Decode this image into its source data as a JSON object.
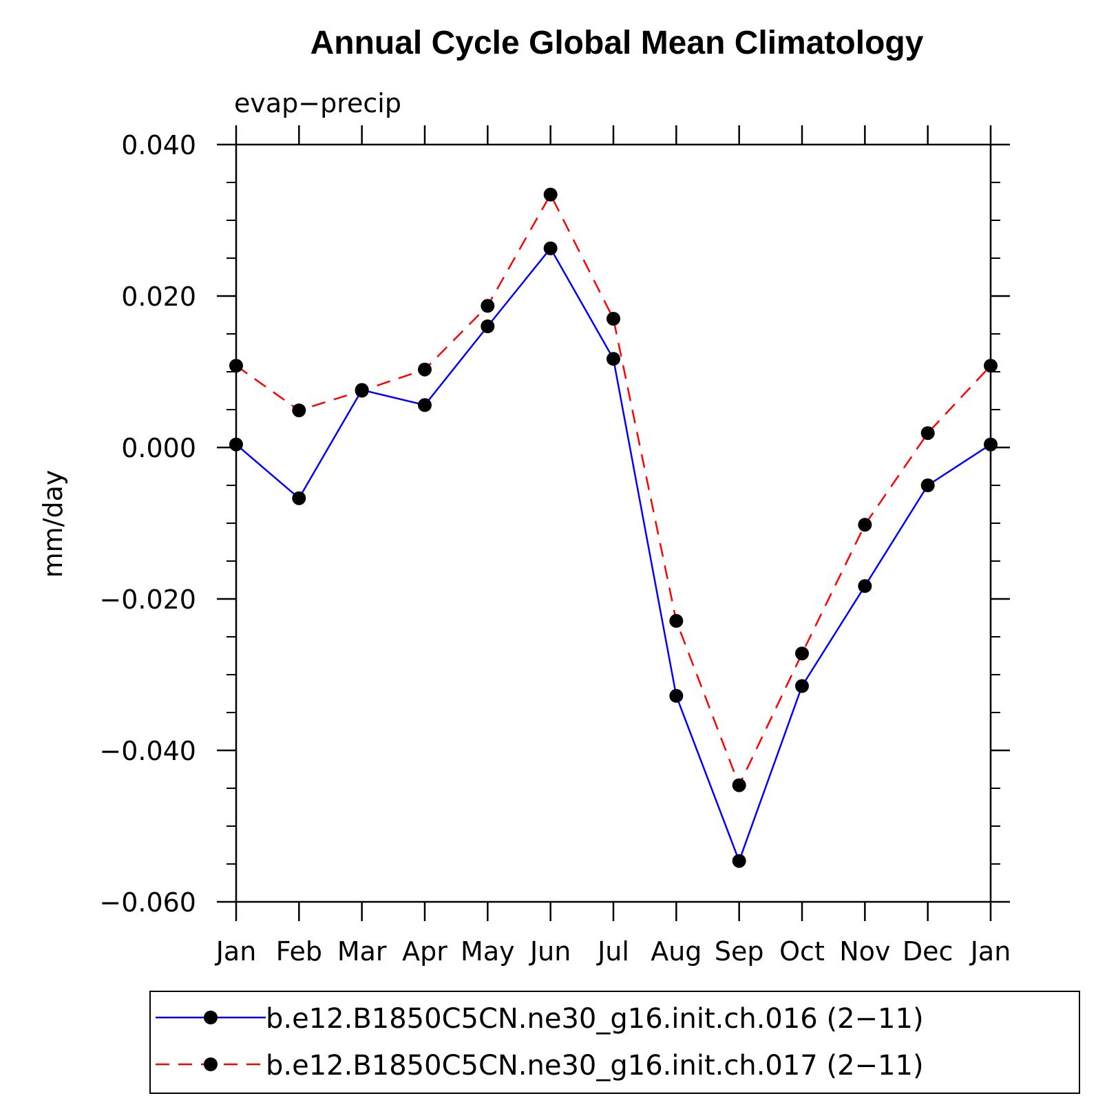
{
  "chart_data": {
    "type": "line",
    "title": "Annual Cycle Global Mean Climatology",
    "subtitle": "evap−precip",
    "xlabel": "",
    "ylabel": "mm/day",
    "categories": [
      "Jan",
      "Feb",
      "Mar",
      "Apr",
      "May",
      "Jun",
      "Jul",
      "Aug",
      "Sep",
      "Oct",
      "Nov",
      "Dec",
      "Jan"
    ],
    "ylim": [
      -0.06,
      0.04
    ],
    "yticks": [
      0.04,
      0.02,
      0.0,
      -0.02,
      -0.04,
      -0.06
    ],
    "ytick_labels": [
      "0.040",
      "0.020",
      "0.000",
      "−0.020",
      "−0.040",
      "−0.060"
    ],
    "grid": false,
    "legend_position": "bottom",
    "series": [
      {
        "name": "b.e12.B1850C5CN.ne30_g16.init.ch.016 (2−11)",
        "color": "#0000ff",
        "style": "solid",
        "values": [
          0.0004,
          -0.0067,
          0.0076,
          0.0056,
          0.016,
          0.0263,
          0.0117,
          -0.0328,
          -0.0546,
          -0.0315,
          -0.0183,
          -0.005,
          0.0004
        ]
      },
      {
        "name": "b.e12.B1850C5CN.ne30_g16.init.ch.017 (2−11)",
        "color": "#ff0000",
        "style": "dashed",
        "values": [
          0.0108,
          0.0049,
          0.0075,
          0.0103,
          0.0187,
          0.0334,
          0.017,
          -0.0229,
          -0.0446,
          -0.0272,
          -0.0102,
          0.0019,
          0.0108
        ]
      }
    ]
  }
}
